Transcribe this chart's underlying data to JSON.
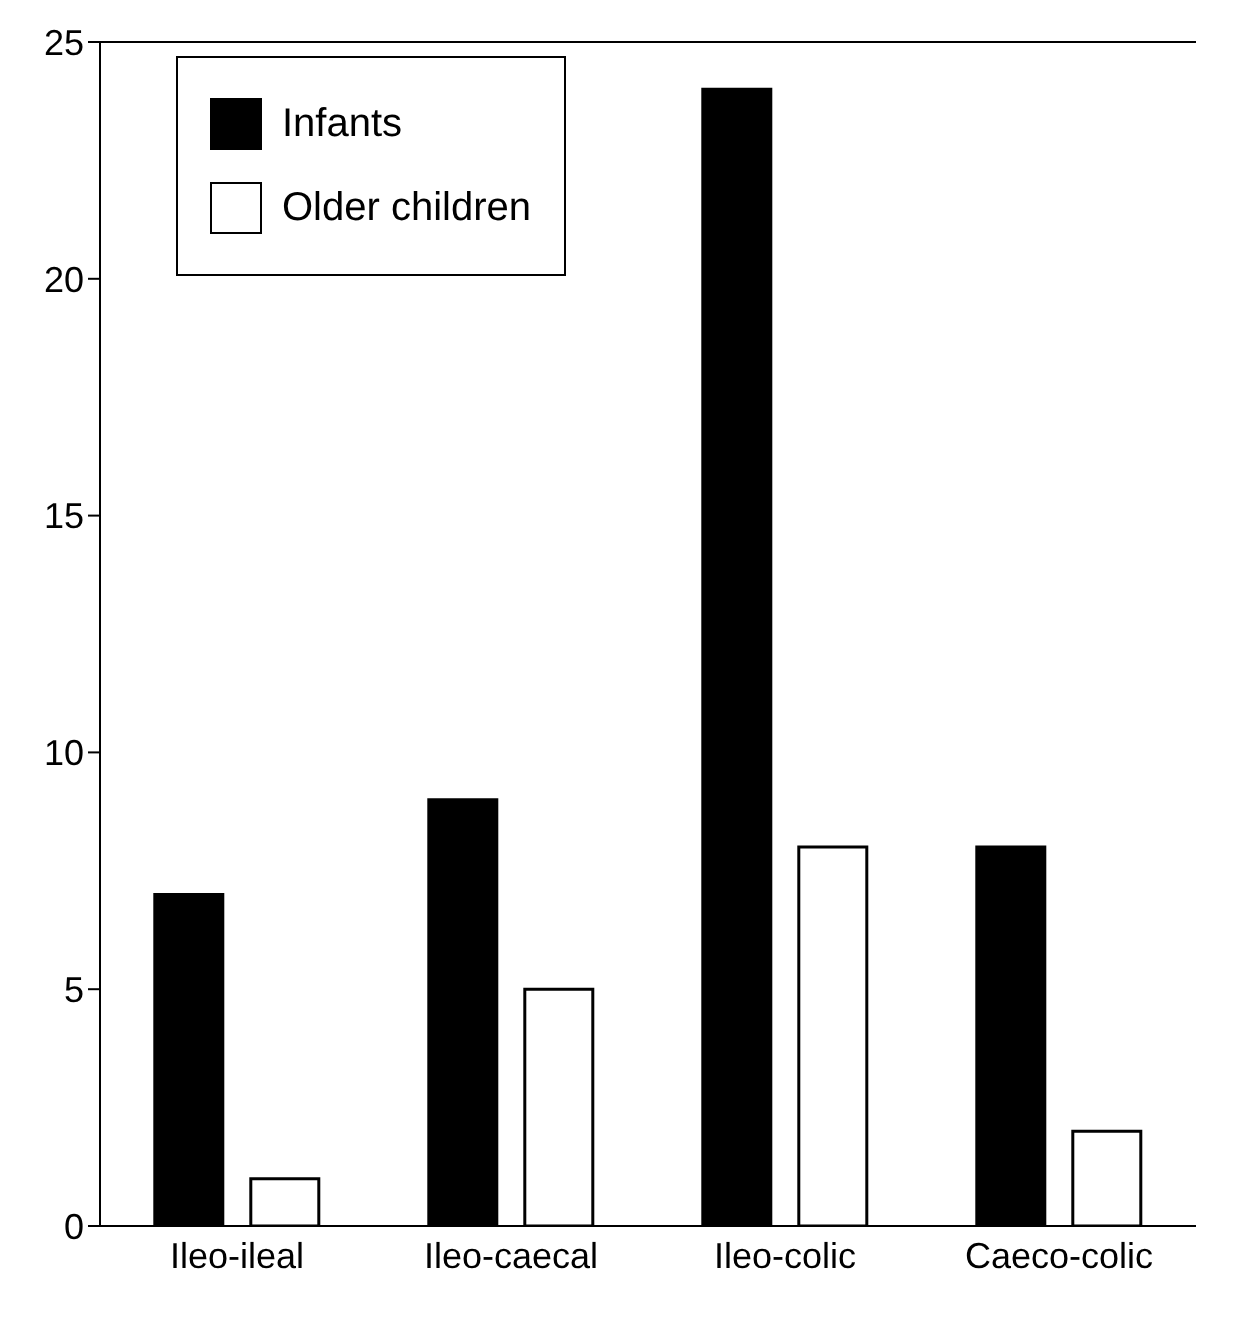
{
  "chart_data": {
    "type": "bar",
    "categories": [
      "Ileo-ileal",
      "Ileo-caecal",
      "Ileo-colic",
      "Caeco-colic"
    ],
    "series": [
      {
        "name": "Infants",
        "color": "#000000",
        "values": [
          7,
          9,
          24,
          8
        ]
      },
      {
        "name": "Older children",
        "color": "#ffffff",
        "values": [
          1,
          5,
          8,
          2
        ]
      }
    ],
    "ylim": [
      0,
      25
    ],
    "yticks": [
      0,
      5,
      10,
      15,
      20,
      25
    ],
    "grid": false,
    "legend": "top left"
  }
}
